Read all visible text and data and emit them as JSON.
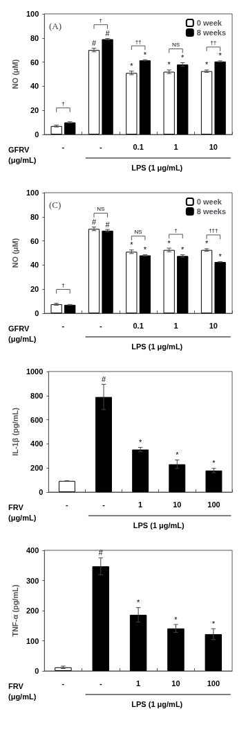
{
  "chart_data": [
    {
      "type": "bar",
      "title": "(A)",
      "ylabel": "NO (μM)",
      "xlabel": "LPS (1 μg/mL)",
      "categories": [
        "-",
        "-",
        "0.1",
        "1",
        "10"
      ],
      "ylim": [
        0,
        100
      ],
      "yticks": [
        0,
        20,
        40,
        60,
        80,
        100
      ],
      "legend": "top right",
      "annotations": [
        "GFRV\n(μg/mL)",
        "†",
        "†",
        "††",
        "NS",
        "††"
      ],
      "series": [
        {
          "name": "0 week",
          "color": "#ffffff",
          "values": [
            7,
            70,
            51,
            52,
            52.5
          ],
          "errors": [
            0.8,
            1.5,
            1.5,
            1.5,
            1
          ],
          "value_labels": [
            null,
            "#",
            "*",
            "*",
            "*"
          ]
        },
        {
          "name": "8 weeks",
          "color": "#000000",
          "values": [
            10,
            79,
            61.5,
            58,
            60.5
          ],
          "errors": [
            0.5,
            0.5,
            0.5,
            1.5,
            0.5
          ],
          "value_labels": [
            null,
            "#",
            "*",
            "*",
            "*"
          ]
        }
      ]
    },
    {
      "type": "bar",
      "title": "(C)",
      "ylabel": "NO (μM)",
      "xlabel": "LPS (1 μg/mL)",
      "categories": [
        "-",
        "-",
        "0.1",
        "1",
        "10"
      ],
      "ylim": [
        0,
        100
      ],
      "yticks": [
        0,
        20,
        40,
        60,
        80,
        100
      ],
      "legend": "top right",
      "annotations": [
        "GFRV\n(μg/mL)",
        "†",
        "NS",
        "NS",
        "†",
        "†††"
      ],
      "series": [
        {
          "name": "0 week",
          "color": "#ffffff",
          "values": [
            7.5,
            70,
            51,
            52.5,
            52.5
          ],
          "errors": [
            0.8,
            1.5,
            1.5,
            1.5,
            1
          ],
          "value_labels": [
            null,
            "#",
            "*",
            "*",
            "*"
          ]
        },
        {
          "name": "8 weeks",
          "color": "#000000",
          "values": [
            7,
            68.5,
            48,
            47.5,
            42.5
          ],
          "errors": [
            0.3,
            1,
            0.5,
            1,
            0.3
          ],
          "value_labels": [
            null,
            "#",
            "*",
            "*",
            "*"
          ]
        }
      ]
    },
    {
      "type": "bar",
      "ylabel": "IL-1β (pg/mL)",
      "xlabel": "LPS (1 μg/mL)",
      "categories": [
        "-",
        "-",
        "1",
        "10",
        "100"
      ],
      "ylim": [
        0,
        1000
      ],
      "yticks": [
        0,
        200,
        400,
        600,
        800,
        1000
      ],
      "annotations": [
        "FRV\n(μg/mL)"
      ],
      "values": [
        93,
        789,
        353,
        231,
        179
      ],
      "colors": [
        "#ffffff",
        "#000000",
        "#000000",
        "#000000",
        "#000000"
      ],
      "errors": [
        0,
        105,
        18,
        35,
        18
      ],
      "value_labels": [
        null,
        "#",
        "*",
        "*",
        "*"
      ]
    },
    {
      "type": "bar",
      "ylabel": "TNF-α (pg/mL)",
      "xlabel": "LPS (1 μg/mL)",
      "categories": [
        "-",
        "-",
        "1",
        "10",
        "100"
      ],
      "ylim": [
        0,
        400
      ],
      "yticks": [
        0,
        100,
        200,
        300,
        400
      ],
      "annotations": [
        "FRV\n(μg/mL)"
      ],
      "values": [
        12,
        347,
        186,
        141,
        122
      ],
      "colors": [
        "#ffffff",
        "#000000",
        "#000000",
        "#000000",
        "#000000"
      ],
      "errors": [
        4,
        28,
        24,
        13,
        18
      ],
      "value_labels": [
        null,
        "#",
        "*",
        "*",
        "*"
      ]
    }
  ]
}
